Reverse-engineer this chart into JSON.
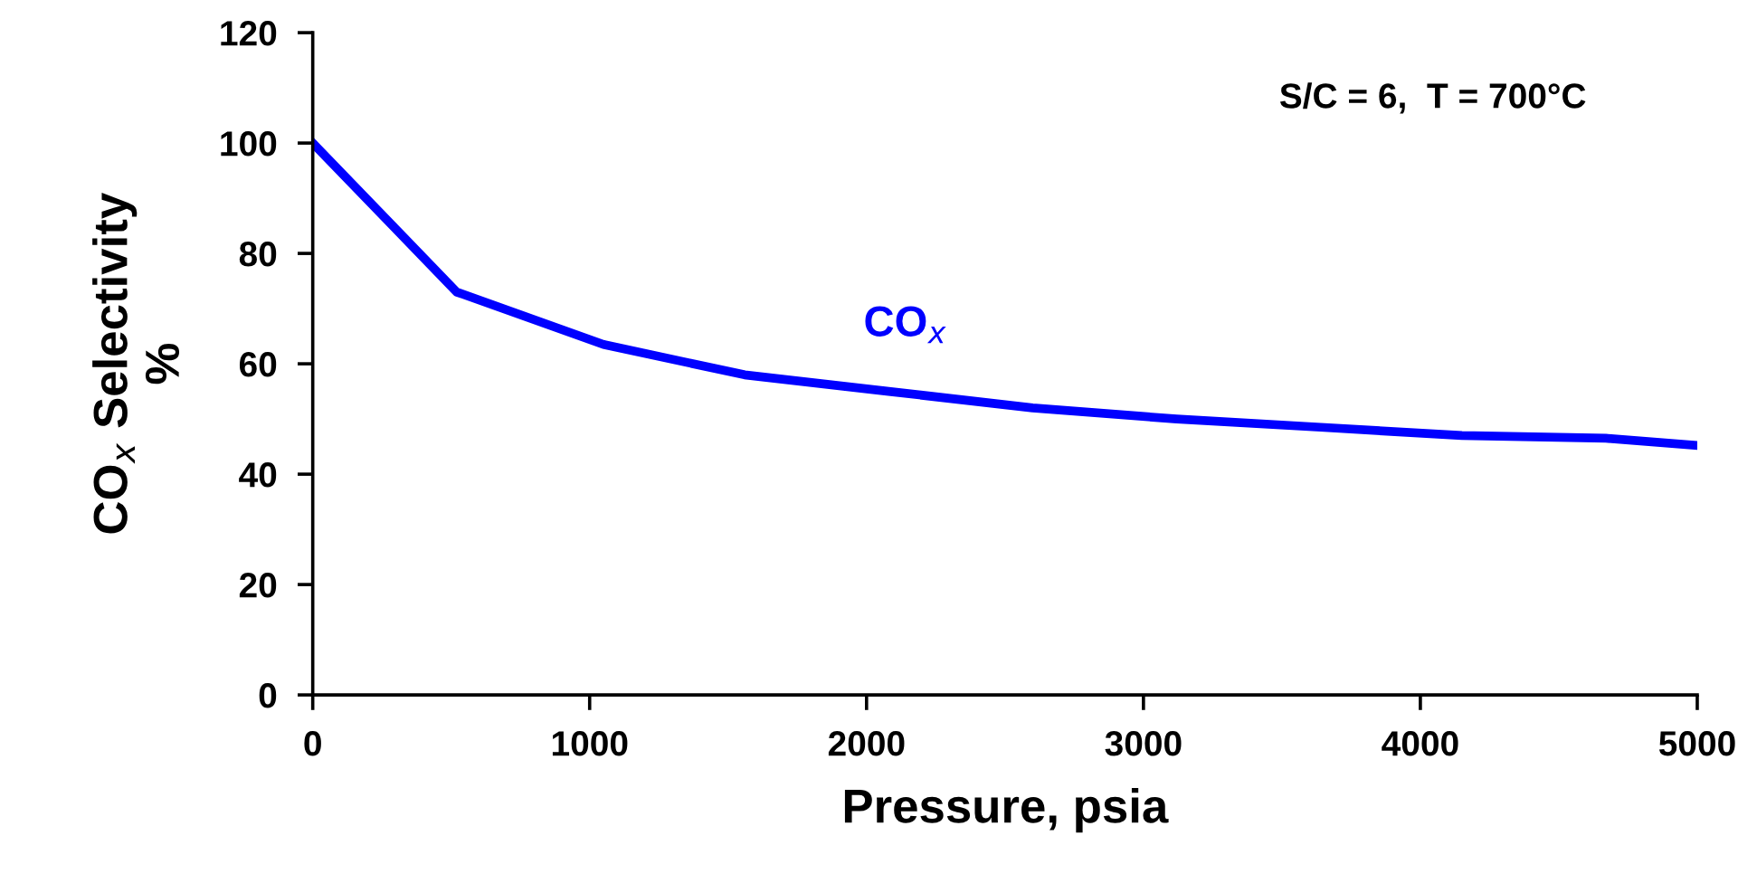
{
  "chart_data": {
    "type": "line",
    "xlabel": "Pressure, psia",
    "ylabel": "CO$_{x}$ Selectivity\n%",
    "annotations": [
      "S/C = 6,  T = 700°C"
    ],
    "x": [
      0,
      520,
      1050,
      1560,
      2080,
      2600,
      3120,
      3640,
      4150,
      4670,
      5000
    ],
    "series": [
      {
        "name": "CO$_{x}$",
        "color": "#0000ff",
        "values": [
          100,
          73,
          63.5,
          58,
          55,
          52,
          50,
          48.5,
          47,
          46.5,
          45.2
        ]
      }
    ],
    "xlim": [
      0,
      5000
    ],
    "xticks": [
      0,
      1000,
      2000,
      3000,
      4000,
      5000
    ],
    "ylim": [
      0,
      120
    ],
    "yticks": [
      0,
      20,
      40,
      60,
      80,
      100,
      120
    ],
    "grid": false,
    "legend": false,
    "marker": "none",
    "line_style": "solid"
  }
}
